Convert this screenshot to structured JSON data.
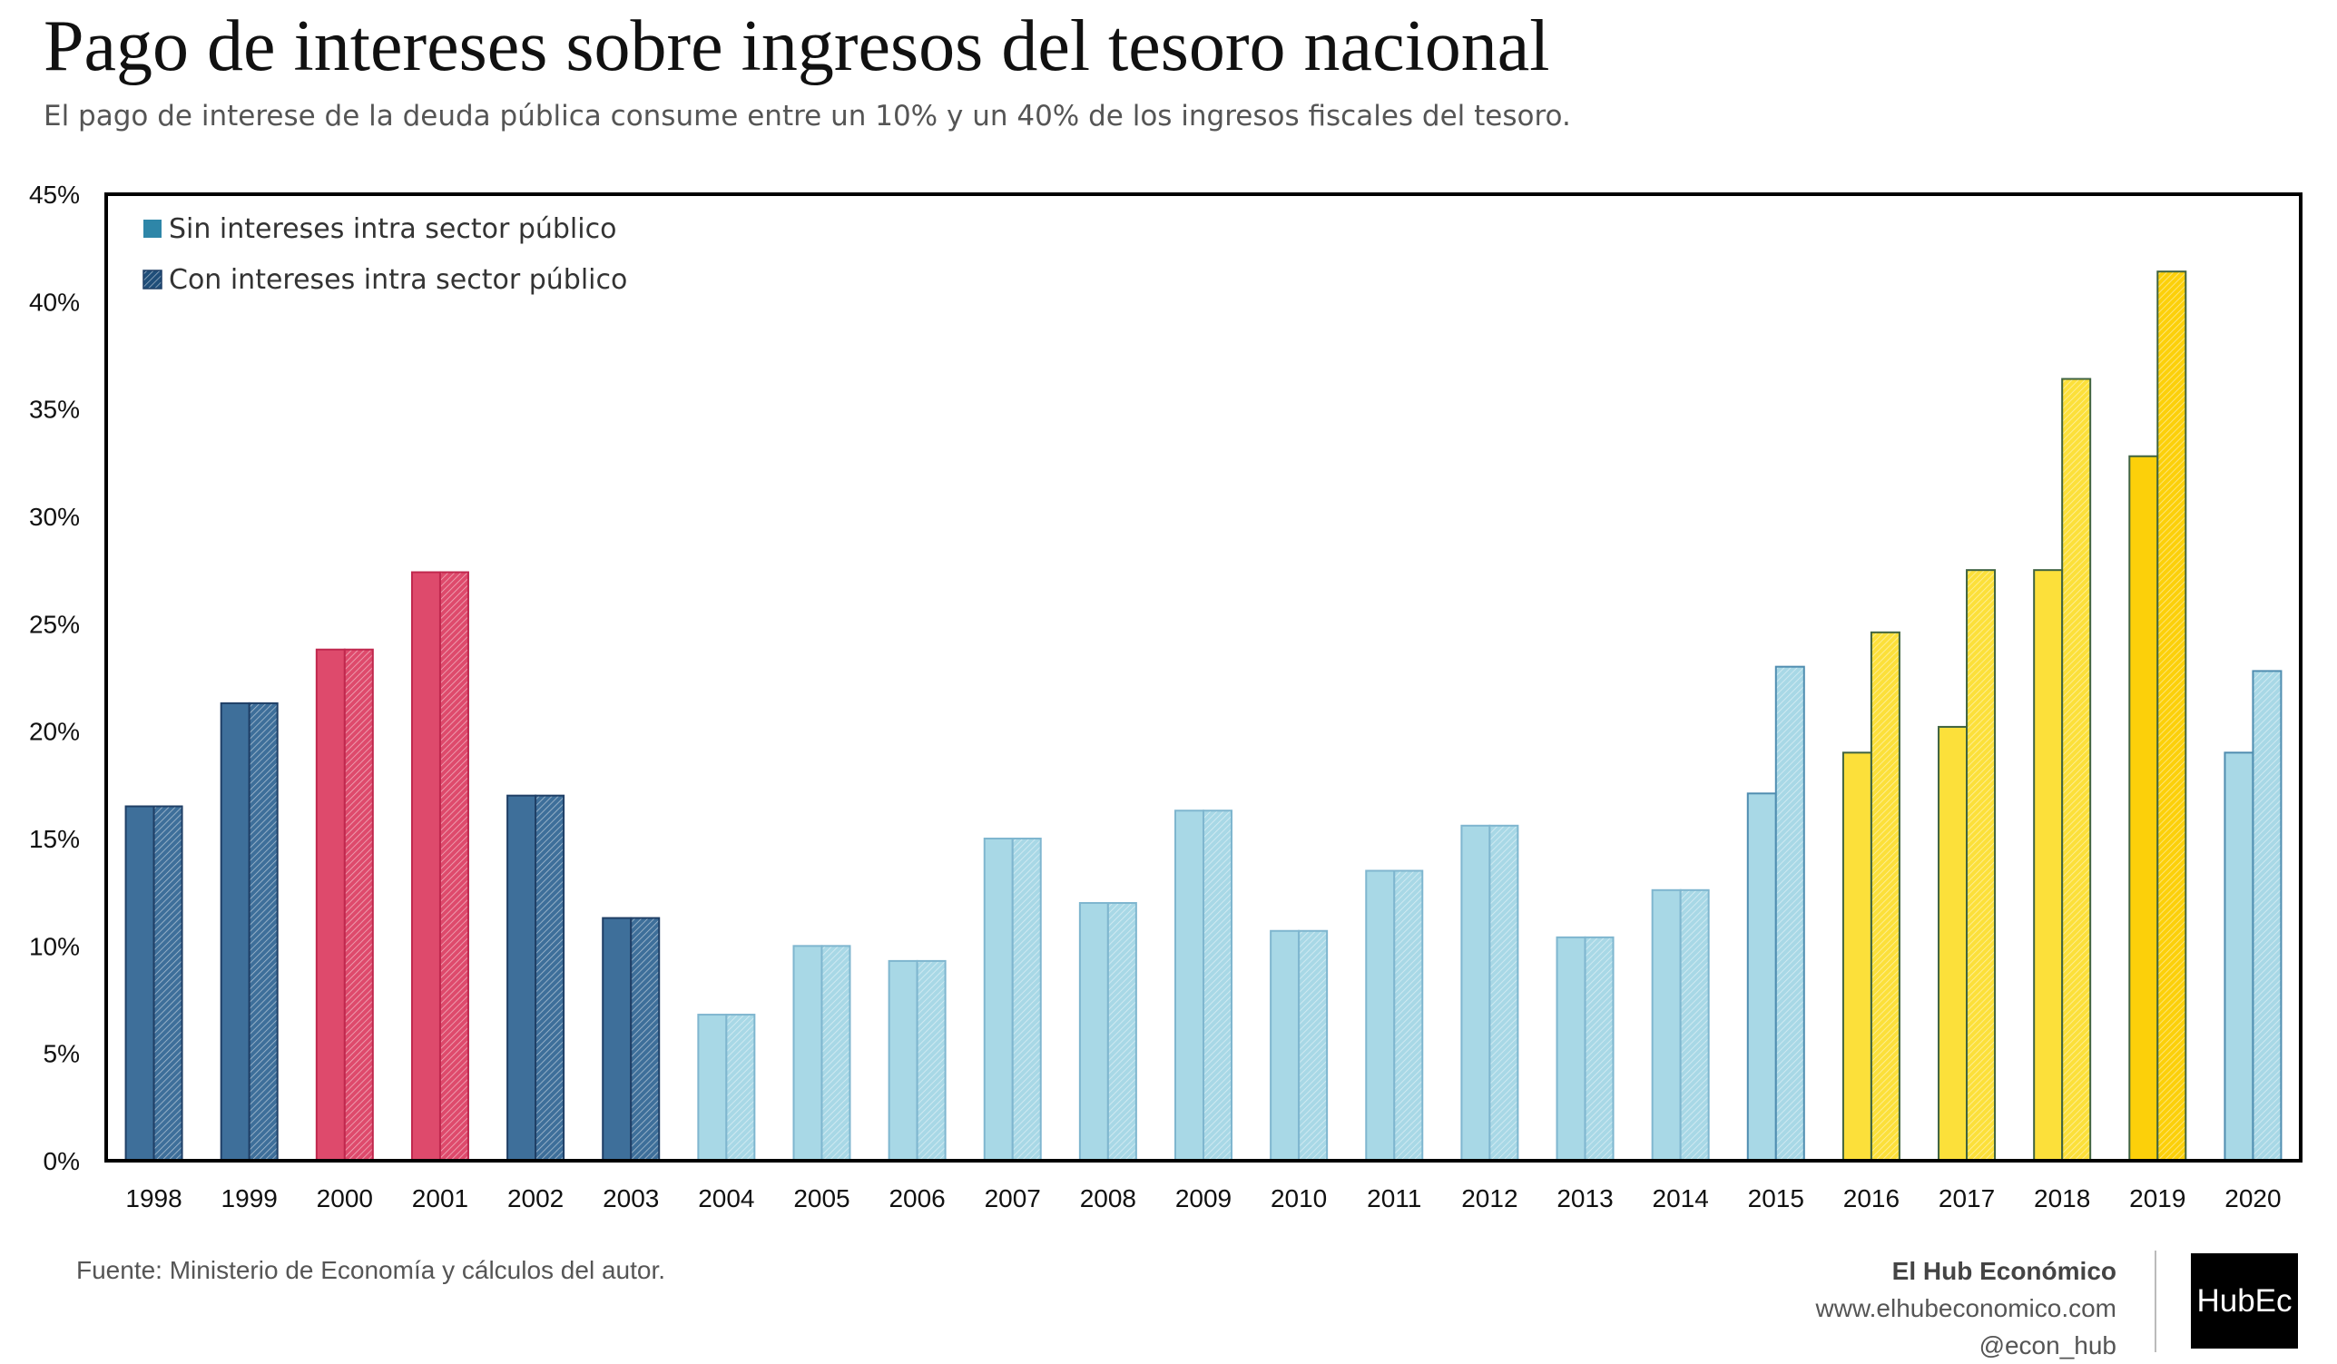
{
  "header": {
    "title": "Pago de intereses sobre ingresos del tesoro nacional",
    "subtitle": "El pago de interese de la deuda pública consume entre un 10% y un 40% de los ingresos fiscales del tesoro."
  },
  "footer": {
    "source": "Fuente: Ministerio de Economía y cálculos del autor.",
    "brand_name": "El Hub Económico",
    "brand_url": "www.elhubeconomico.com",
    "brand_handle": "@econ_hub",
    "logo_text": "HubEc"
  },
  "chart_data": {
    "type": "bar",
    "title": "",
    "xlabel": "",
    "ylabel": "",
    "ylim": [
      0,
      45
    ],
    "y_ticks": [
      "0%",
      "5%",
      "10%",
      "15%",
      "20%",
      "25%",
      "30%",
      "35%",
      "40%",
      "45%"
    ],
    "grid": false,
    "legend_position": "top-left",
    "categories": [
      "1998",
      "1999",
      "2000",
      "2001",
      "2002",
      "2003",
      "2004",
      "2005",
      "2006",
      "2007",
      "2008",
      "2009",
      "2010",
      "2011",
      "2012",
      "2013",
      "2014",
      "2015",
      "2016",
      "2017",
      "2018",
      "2019",
      "2020"
    ],
    "series": [
      {
        "name": "Sin intereses intra sector público",
        "values": [
          16.5,
          21.3,
          23.8,
          27.4,
          17.0,
          11.3,
          6.8,
          10.0,
          9.3,
          15.0,
          12.0,
          16.3,
          10.7,
          13.5,
          15.6,
          10.4,
          12.6,
          17.1,
          19.0,
          20.2,
          27.5,
          32.8,
          19.0
        ]
      },
      {
        "name": "Con intereses intra sector público",
        "values": [
          16.5,
          21.3,
          23.8,
          27.4,
          17.0,
          11.3,
          6.8,
          10.0,
          9.3,
          15.0,
          12.0,
          16.3,
          10.7,
          13.5,
          15.6,
          10.4,
          12.6,
          23.0,
          24.6,
          27.5,
          36.4,
          41.4,
          22.8
        ]
      }
    ],
    "legend_colors": [
      "#2e86a8",
      "#1f4e79"
    ],
    "bar_colors": [
      "#3e6f9a",
      "#3e6f9a",
      "#de4a6c",
      "#de4a6c",
      "#3e6f9a",
      "#3e6f9a",
      "#a8d8e6",
      "#a8d8e6",
      "#a8d8e6",
      "#a8d8e6",
      "#a8d8e6",
      "#a8d8e6",
      "#a8d8e6",
      "#a8d8e6",
      "#a8d8e6",
      "#a8d8e6",
      "#a8d8e6",
      "#a8d8e6",
      "#fce03a",
      "#fce03a",
      "#fce03a",
      "#fcd00a",
      "#a8d8e6"
    ],
    "edge_colors": [
      "#1f3f66",
      "#1f3f66",
      "#c0284e",
      "#c0284e",
      "#1f3f66",
      "#1f3f66",
      "#7fb6cf",
      "#7fb6cf",
      "#7fb6cf",
      "#7fb6cf",
      "#7fb6cf",
      "#7fb6cf",
      "#7fb6cf",
      "#7fb6cf",
      "#7fb6cf",
      "#7fb6cf",
      "#7fb6cf",
      "#4f8db0",
      "#3f6340",
      "#3f6340",
      "#3f6340",
      "#3f6340",
      "#4f8db0"
    ]
  }
}
